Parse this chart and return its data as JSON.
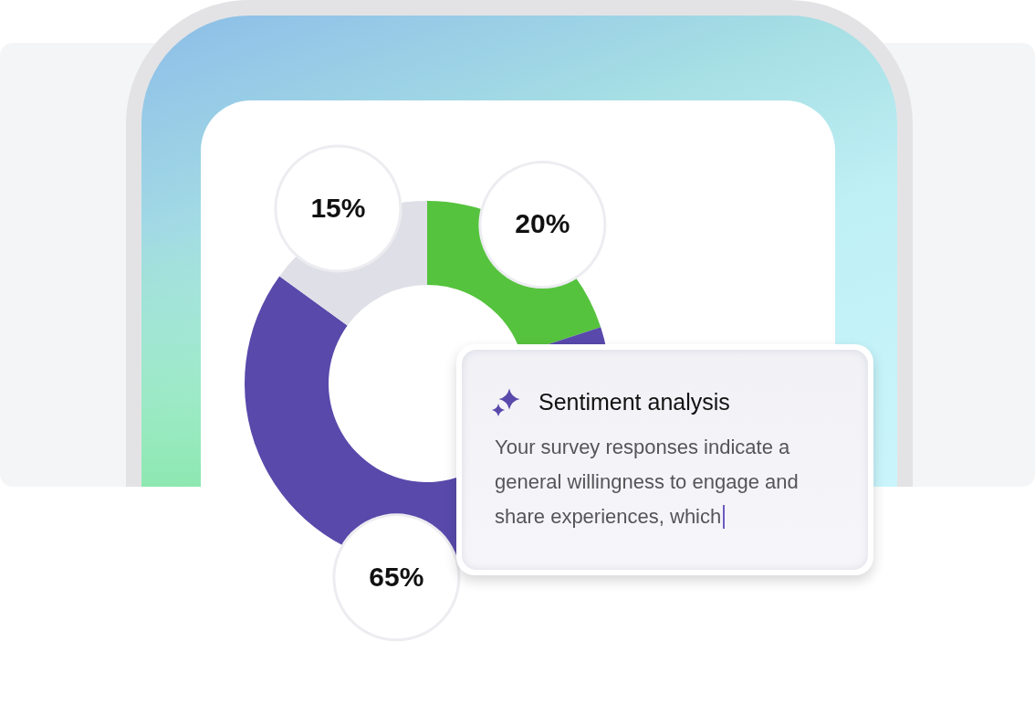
{
  "chart_data": {
    "type": "donut",
    "title": "Sentiment analysis",
    "annotations": [
      "Your survey responses indicate a general willingness to engage and share experiences, which"
    ],
    "categories": [
      null,
      null,
      null
    ],
    "values": [
      20,
      65,
      15
    ],
    "colors": [
      "#56c33e",
      "#5849ab",
      "#dfdfe7"
    ],
    "value_labels": [
      "20%",
      "65%",
      "15%"
    ]
  }
}
